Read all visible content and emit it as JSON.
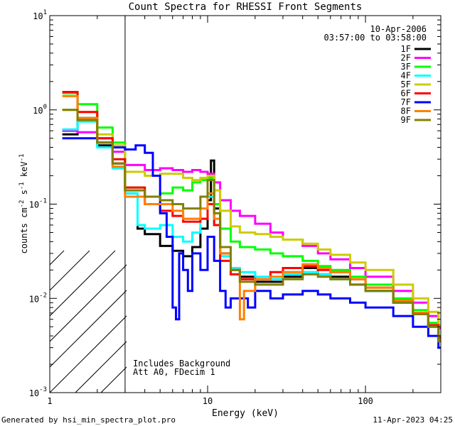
{
  "chart_data": {
    "type": "line",
    "title": "Count Spectra for RHESSI Front Segments",
    "xlabel": "Energy (keV)",
    "ylabel": "counts cm^-2 s^-1 keV^-1",
    "xlim": [
      1,
      300
    ],
    "ylim": [
      0.001,
      10
    ],
    "xscale": "log",
    "yscale": "log",
    "x_ticks": [
      {
        "value": 1,
        "label": "1"
      },
      {
        "value": 10,
        "label": "10"
      },
      {
        "value": 100,
        "label": "100"
      }
    ],
    "y_ticks": [
      {
        "value": 0.001,
        "mant": "10",
        "exp": "-3"
      },
      {
        "value": 0.01,
        "mant": "10",
        "exp": "-2"
      },
      {
        "value": 0.1,
        "mant": "10",
        "exp": "-1"
      },
      {
        "value": 1,
        "mant": "10",
        "exp": "0"
      },
      {
        "value": 10,
        "mant": "10",
        "exp": "1"
      }
    ],
    "hatched_region_xmax": 3,
    "date": "10-Apr-2006",
    "time_range": "03:57:00 to 03:58:00",
    "notes": [
      "Includes Background",
      "Att A0, FDecim 1"
    ],
    "footer_left": "Generated by hsi_min_spectra_plot.pro",
    "footer_right": "11-Apr-2023 04:25",
    "series": [
      {
        "name": "1F",
        "color": "#000000",
        "points": [
          [
            1.2,
            0.55
          ],
          [
            1.5,
            0.82
          ],
          [
            2,
            0.42
          ],
          [
            2.5,
            0.27
          ],
          [
            3,
            0.13
          ],
          [
            3.6,
            0.055
          ],
          [
            4,
            0.048
          ],
          [
            5,
            0.036
          ],
          [
            6,
            0.032
          ],
          [
            7,
            0.028
          ],
          [
            8,
            0.035
          ],
          [
            9,
            0.055
          ],
          [
            10,
            0.11
          ],
          [
            10.5,
            0.29
          ],
          [
            11,
            0.09
          ],
          [
            12,
            0.03
          ],
          [
            14,
            0.02
          ],
          [
            16,
            0.017
          ],
          [
            20,
            0.015
          ],
          [
            25,
            0.015
          ],
          [
            30,
            0.017
          ],
          [
            40,
            0.021
          ],
          [
            50,
            0.018
          ],
          [
            60,
            0.017
          ],
          [
            80,
            0.014
          ],
          [
            100,
            0.012
          ],
          [
            150,
            0.009
          ],
          [
            200,
            0.007
          ],
          [
            250,
            0.005
          ],
          [
            290,
            0.0038
          ]
        ]
      },
      {
        "name": "2F",
        "color": "#ff00ff",
        "points": [
          [
            1.2,
            0.6
          ],
          [
            1.5,
            0.58
          ],
          [
            2,
            0.5
          ],
          [
            2.5,
            0.36
          ],
          [
            3,
            0.26
          ],
          [
            4,
            0.23
          ],
          [
            5,
            0.24
          ],
          [
            6,
            0.23
          ],
          [
            7,
            0.22
          ],
          [
            8,
            0.23
          ],
          [
            9,
            0.22
          ],
          [
            10,
            0.21
          ],
          [
            11,
            0.17
          ],
          [
            12,
            0.11
          ],
          [
            14,
            0.085
          ],
          [
            16,
            0.075
          ],
          [
            20,
            0.062
          ],
          [
            25,
            0.05
          ],
          [
            30,
            0.042
          ],
          [
            40,
            0.036
          ],
          [
            50,
            0.03
          ],
          [
            60,
            0.026
          ],
          [
            80,
            0.021
          ],
          [
            100,
            0.017
          ],
          [
            150,
            0.012
          ],
          [
            200,
            0.009
          ],
          [
            250,
            0.0065
          ],
          [
            290,
            0.0048
          ]
        ]
      },
      {
        "name": "3F",
        "color": "#00ff00",
        "points": [
          [
            1.2,
            1.5
          ],
          [
            1.5,
            1.15
          ],
          [
            2,
            0.65
          ],
          [
            2.5,
            0.45
          ],
          [
            3,
            0.15
          ],
          [
            4,
            0.12
          ],
          [
            5,
            0.13
          ],
          [
            6,
            0.15
          ],
          [
            7,
            0.14
          ],
          [
            8,
            0.17
          ],
          [
            9,
            0.18
          ],
          [
            10,
            0.19
          ],
          [
            11,
            0.1
          ],
          [
            12,
            0.055
          ],
          [
            14,
            0.04
          ],
          [
            16,
            0.035
          ],
          [
            20,
            0.033
          ],
          [
            25,
            0.03
          ],
          [
            30,
            0.028
          ],
          [
            40,
            0.025
          ],
          [
            50,
            0.022
          ],
          [
            60,
            0.02
          ],
          [
            80,
            0.017
          ],
          [
            100,
            0.014
          ],
          [
            150,
            0.01
          ],
          [
            200,
            0.0075
          ],
          [
            250,
            0.0055
          ],
          [
            290,
            0.004
          ]
        ]
      },
      {
        "name": "4F",
        "color": "#00ffff",
        "points": [
          [
            1.2,
            0.62
          ],
          [
            1.5,
            0.75
          ],
          [
            2,
            0.4
          ],
          [
            2.5,
            0.24
          ],
          [
            3,
            0.13
          ],
          [
            3.6,
            0.06
          ],
          [
            4,
            0.055
          ],
          [
            5,
            0.06
          ],
          [
            6,
            0.045
          ],
          [
            7,
            0.04
          ],
          [
            8,
            0.05
          ],
          [
            9,
            0.07
          ],
          [
            10,
            0.12
          ],
          [
            11,
            0.06
          ],
          [
            12,
            0.028
          ],
          [
            14,
            0.021
          ],
          [
            16,
            0.019
          ],
          [
            20,
            0.017
          ],
          [
            25,
            0.016
          ],
          [
            30,
            0.018
          ],
          [
            40,
            0.019
          ],
          [
            50,
            0.018
          ],
          [
            60,
            0.016
          ],
          [
            80,
            0.014
          ],
          [
            100,
            0.012
          ],
          [
            150,
            0.009
          ],
          [
            200,
            0.0068
          ],
          [
            250,
            0.005
          ],
          [
            290,
            0.0038
          ]
        ]
      },
      {
        "name": "5F",
        "color": "#cccc00",
        "points": [
          [
            1.2,
            1.0
          ],
          [
            1.5,
            0.95
          ],
          [
            2,
            0.55
          ],
          [
            2.5,
            0.42
          ],
          [
            3,
            0.22
          ],
          [
            4,
            0.2
          ],
          [
            5,
            0.21
          ],
          [
            6,
            0.21
          ],
          [
            7,
            0.19
          ],
          [
            8,
            0.18
          ],
          [
            9,
            0.19
          ],
          [
            10,
            0.2
          ],
          [
            11,
            0.14
          ],
          [
            12,
            0.085
          ],
          [
            14,
            0.058
          ],
          [
            16,
            0.05
          ],
          [
            20,
            0.048
          ],
          [
            25,
            0.045
          ],
          [
            30,
            0.042
          ],
          [
            40,
            0.038
          ],
          [
            50,
            0.033
          ],
          [
            60,
            0.029
          ],
          [
            80,
            0.024
          ],
          [
            100,
            0.02
          ],
          [
            150,
            0.014
          ],
          [
            200,
            0.01
          ],
          [
            250,
            0.0072
          ],
          [
            290,
            0.0052
          ]
        ]
      },
      {
        "name": "6F",
        "color": "#ff0000",
        "points": [
          [
            1.2,
            1.55
          ],
          [
            1.5,
            0.95
          ],
          [
            2,
            0.5
          ],
          [
            2.5,
            0.3
          ],
          [
            3,
            0.15
          ],
          [
            4,
            0.1
          ],
          [
            5,
            0.085
          ],
          [
            6,
            0.075
          ],
          [
            7,
            0.065
          ],
          [
            8,
            0.065
          ],
          [
            9,
            0.07
          ],
          [
            10,
            0.1
          ],
          [
            11,
            0.06
          ],
          [
            12,
            0.025
          ],
          [
            14,
            0.018
          ],
          [
            16,
            0.016
          ],
          [
            20,
            0.016
          ],
          [
            25,
            0.019
          ],
          [
            30,
            0.021
          ],
          [
            40,
            0.022
          ],
          [
            50,
            0.02
          ],
          [
            60,
            0.019
          ],
          [
            80,
            0.016
          ],
          [
            100,
            0.013
          ],
          [
            150,
            0.0095
          ],
          [
            200,
            0.007
          ],
          [
            250,
            0.0052
          ],
          [
            290,
            0.0038
          ]
        ]
      },
      {
        "name": "7F",
        "color": "#0000ff",
        "points": [
          [
            1.2,
            0.5
          ],
          [
            1.5,
            0.5
          ],
          [
            2,
            0.45
          ],
          [
            2.5,
            0.4
          ],
          [
            3,
            0.38
          ],
          [
            3.5,
            0.42
          ],
          [
            4,
            0.35
          ],
          [
            4.5,
            0.2
          ],
          [
            5,
            0.08
          ],
          [
            5.5,
            0.045
          ],
          [
            6,
            0.008
          ],
          [
            6.3,
            0.006
          ],
          [
            6.6,
            0.03
          ],
          [
            7,
            0.02
          ],
          [
            7.5,
            0.012
          ],
          [
            8,
            0.03
          ],
          [
            9,
            0.02
          ],
          [
            10,
            0.045
          ],
          [
            11,
            0.025
          ],
          [
            12,
            0.012
          ],
          [
            13,
            0.008
          ],
          [
            14,
            0.01
          ],
          [
            16,
            0.01
          ],
          [
            18,
            0.008
          ],
          [
            20,
            0.012
          ],
          [
            25,
            0.01
          ],
          [
            30,
            0.011
          ],
          [
            40,
            0.012
          ],
          [
            50,
            0.011
          ],
          [
            60,
            0.01
          ],
          [
            80,
            0.009
          ],
          [
            100,
            0.008
          ],
          [
            150,
            0.0065
          ],
          [
            200,
            0.005
          ],
          [
            250,
            0.004
          ],
          [
            290,
            0.003
          ]
        ]
      },
      {
        "name": "8F",
        "color": "#ff8000",
        "points": [
          [
            1.2,
            1.4
          ],
          [
            1.5,
            0.82
          ],
          [
            2,
            0.45
          ],
          [
            2.5,
            0.25
          ],
          [
            3,
            0.12
          ],
          [
            4,
            0.1
          ],
          [
            5,
            0.1
          ],
          [
            6,
            0.085
          ],
          [
            7,
            0.07
          ],
          [
            8,
            0.07
          ],
          [
            9,
            0.09
          ],
          [
            10,
            0.13
          ],
          [
            11,
            0.07
          ],
          [
            12,
            0.03
          ],
          [
            14,
            0.02
          ],
          [
            16,
            0.006
          ],
          [
            17,
            0.012
          ],
          [
            20,
            0.016
          ],
          [
            25,
            0.017
          ],
          [
            30,
            0.019
          ],
          [
            40,
            0.023
          ],
          [
            50,
            0.021
          ],
          [
            60,
            0.019
          ],
          [
            80,
            0.016
          ],
          [
            100,
            0.013
          ],
          [
            150,
            0.0095
          ],
          [
            200,
            0.007
          ],
          [
            250,
            0.005
          ],
          [
            290,
            0.0036
          ]
        ]
      },
      {
        "name": "9F",
        "color": "#808000",
        "points": [
          [
            1.2,
            1.0
          ],
          [
            1.5,
            0.78
          ],
          [
            2,
            0.45
          ],
          [
            2.5,
            0.27
          ],
          [
            3,
            0.14
          ],
          [
            4,
            0.12
          ],
          [
            5,
            0.11
          ],
          [
            6,
            0.1
          ],
          [
            7,
            0.09
          ],
          [
            8,
            0.09
          ],
          [
            9,
            0.12
          ],
          [
            10,
            0.18
          ],
          [
            11,
            0.08
          ],
          [
            12,
            0.035
          ],
          [
            14,
            0.02
          ],
          [
            16,
            0.015
          ],
          [
            20,
            0.014
          ],
          [
            25,
            0.014
          ],
          [
            30,
            0.016
          ],
          [
            40,
            0.018
          ],
          [
            50,
            0.017
          ],
          [
            60,
            0.016
          ],
          [
            80,
            0.014
          ],
          [
            100,
            0.012
          ],
          [
            150,
            0.009
          ],
          [
            200,
            0.0068
          ],
          [
            250,
            0.005
          ],
          [
            290,
            0.0035
          ]
        ]
      }
    ]
  }
}
